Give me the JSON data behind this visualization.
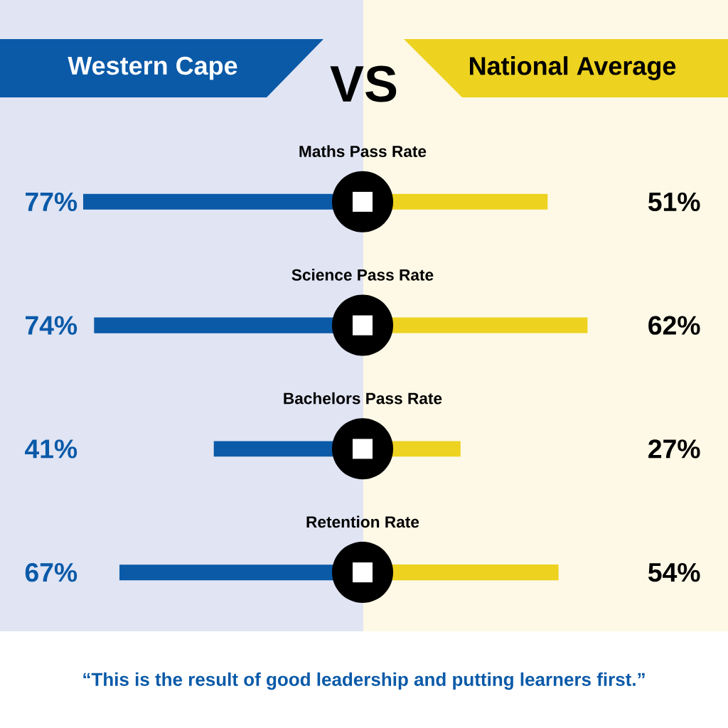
{
  "chart_data": [
    {
      "type": "bar",
      "orientation": "horizontal",
      "title": "VS",
      "categories": [
        "Maths Pass Rate",
        "Science Pass Rate",
        "Bachelors Pass Rate",
        "Retention Rate"
      ],
      "series": [
        {
          "name": "Western Cape",
          "color": "#0a5aa8",
          "values": [
            77,
            74,
            41,
            67
          ],
          "value_labels": [
            "77%",
            "74%",
            "41%",
            "67%"
          ]
        }
      ],
      "tick_labels": false
    },
    {
      "type": "bar",
      "orientation": "horizontal",
      "categories": [
        null,
        null,
        null,
        null
      ],
      "series": [
        {
          "name": "National Average",
          "color": "#edd21f",
          "values": [
            51,
            62,
            27,
            54
          ],
          "value_labels": [
            "51%",
            "62%",
            "27%",
            "54%"
          ]
        }
      ],
      "tick_labels": false,
      "annotations": [
        "“This is the result of good leadership and putting learners first.”"
      ]
    }
  ]
}
